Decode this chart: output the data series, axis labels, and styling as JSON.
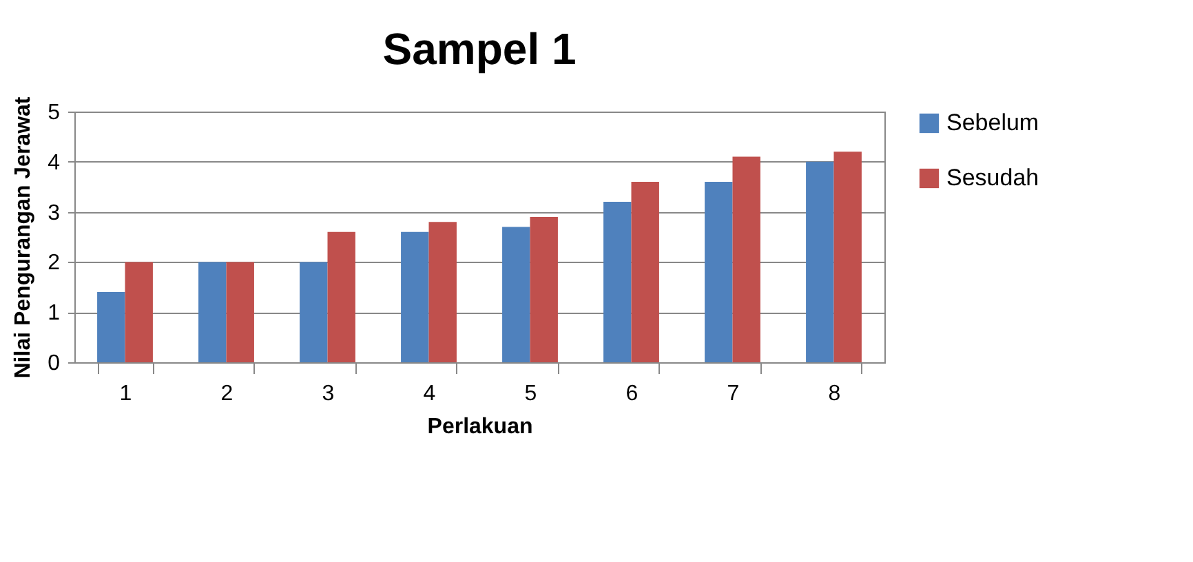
{
  "chart_data": {
    "type": "bar",
    "title": "Sampel 1",
    "xlabel": "Perlakuan",
    "ylabel": "Nilai Pengurangan Jerawat",
    "categories": [
      "1",
      "2",
      "3",
      "4",
      "5",
      "6",
      "7",
      "8"
    ],
    "series": [
      {
        "name": "Sebelum",
        "color": "#4f81bd",
        "values": [
          1.4,
          2,
          2,
          2.6,
          2.7,
          3.2,
          3.6,
          4.0
        ]
      },
      {
        "name": "Sesudah",
        "color": "#c0504d",
        "values": [
          2,
          2,
          2.6,
          2.8,
          2.9,
          3.6,
          4.1,
          4.2
        ]
      }
    ],
    "ylim": [
      0,
      5
    ],
    "yticks": [
      0,
      1,
      2,
      3,
      4,
      5
    ],
    "grid": "y",
    "legend": "right"
  }
}
